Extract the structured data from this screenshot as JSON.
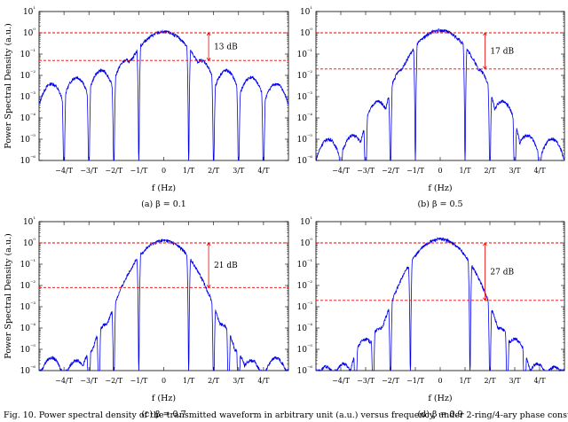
{
  "caption": "Fig. 10.  Power spectral density of the transmitted waveform in arbitrary unit (a.u.) versus frequency, under 2-ring/4-ary phase constellation.",
  "colors": {
    "spectrum": "#0000ee",
    "ref_line": "#ee0000"
  },
  "chart_data": [
    {
      "type": "line",
      "panel_caption": "(a) β = 0.1",
      "beta": 0.1,
      "xlabel": "f (Hz)",
      "ylabel": "Power Spectral Density (a.u.)",
      "x_ticks": [
        "−4/T",
        "−3/T",
        "−2/T",
        "−1/T",
        "0",
        "1/T",
        "2/T",
        "3/T",
        "4/T"
      ],
      "y_ticks": [
        "10⁻⁶",
        "10⁻⁵",
        "10⁻⁴",
        "10⁻³",
        "10⁻²",
        "10⁻¹",
        "10⁰",
        "10¹"
      ],
      "xlim": [
        -5,
        5
      ],
      "ylim": [
        1e-06,
        10
      ],
      "yscale": "log",
      "lobes": [
        {
          "f": -4.5,
          "peak": 0.004
        },
        {
          "f": -3.5,
          "peak": 0.008
        },
        {
          "f": -2.5,
          "peak": 0.017
        },
        {
          "f": -1.5,
          "peak": 0.05
        },
        {
          "f": 0,
          "peak": 1.1
        },
        {
          "f": 1.5,
          "peak": 0.05
        },
        {
          "f": 2.5,
          "peak": 0.017
        },
        {
          "f": 3.5,
          "peak": 0.008
        },
        {
          "f": 4.5,
          "peak": 0.004
        }
      ],
      "nulls": [
        -4,
        -3,
        -2,
        -1,
        1,
        2,
        3,
        4
      ],
      "ref_lines": [
        1.0,
        0.05
      ],
      "annotation": "13 dB"
    },
    {
      "type": "line",
      "panel_caption": "(b) β = 0.5",
      "beta": 0.5,
      "xlabel": "f (Hz)",
      "ylabel": "Power Spectral Density (a.u.)",
      "x_ticks": [
        "−4/T",
        "−3/T",
        "−2/T",
        "−1/T",
        "0",
        "1/T",
        "2/T",
        "3/T",
        "4/T"
      ],
      "y_ticks": [
        "10⁻⁶",
        "10⁻⁵",
        "10⁻⁴",
        "10⁻³",
        "10⁻²",
        "10⁻¹",
        "10⁰",
        "10¹"
      ],
      "xlim": [
        -5,
        5
      ],
      "ylim": [
        1e-06,
        10
      ],
      "yscale": "log",
      "lobes": [
        {
          "f": -4.5,
          "peak": 1e-05
        },
        {
          "f": -3.5,
          "peak": 1.5e-05
        },
        {
          "f": -2.5,
          "peak": 0.0006
        },
        {
          "f": -1.5,
          "peak": 0.02
        },
        {
          "f": 0,
          "peak": 1.3
        },
        {
          "f": 1.5,
          "peak": 0.02
        },
        {
          "f": 2.5,
          "peak": 0.0006
        },
        {
          "f": 3.5,
          "peak": 1.5e-05
        },
        {
          "f": 4.5,
          "peak": 1e-05
        }
      ],
      "nulls": [
        -4,
        -3,
        -2,
        -1,
        1,
        2,
        3,
        4
      ],
      "ref_lines": [
        1.0,
        0.02
      ],
      "annotation": "17 dB"
    },
    {
      "type": "line",
      "panel_caption": "(c) β = 0.7",
      "beta": 0.7,
      "xlabel": "f (Hz)",
      "ylabel": "Power Spectral Density (a.u.)",
      "x_ticks": [
        "−4/T",
        "−3/T",
        "−2/T",
        "−1/T",
        "0",
        "1/T",
        "2/T",
        "3/T",
        "4/T"
      ],
      "y_ticks": [
        "10⁻⁶",
        "10⁻⁵",
        "10⁻⁴",
        "10⁻³",
        "10⁻²",
        "10⁻¹",
        "10⁰",
        "10¹"
      ],
      "xlim": [
        -5,
        5
      ],
      "ylim": [
        1e-06,
        10
      ],
      "yscale": "log",
      "lobes": [
        {
          "f": -4.5,
          "peak": 4e-06
        },
        {
          "f": -3.5,
          "peak": 3e-06
        },
        {
          "f": -2.8,
          "peak": 1e-05
        },
        {
          "f": -2.3,
          "peak": 0.00015
        },
        {
          "f": -1.5,
          "peak": 0.008
        },
        {
          "f": 0,
          "peak": 1.3
        },
        {
          "f": 1.5,
          "peak": 0.008
        },
        {
          "f": 2.3,
          "peak": 0.00015
        },
        {
          "f": 2.8,
          "peak": 1e-05
        },
        {
          "f": 3.5,
          "peak": 3e-06
        },
        {
          "f": 4.5,
          "peak": 4e-06
        }
      ],
      "nulls": [
        -4,
        -3,
        -2.6,
        -2,
        -1,
        1,
        2,
        2.6,
        3,
        4
      ],
      "ref_lines": [
        1.0,
        0.008
      ],
      "annotation": "21 dB"
    },
    {
      "type": "line",
      "panel_caption": "(d) β = 0.9",
      "beta": 0.9,
      "xlabel": "f (Hz)",
      "ylabel": "Power Spectral Density (a.u.)",
      "x_ticks": [
        "−4/T",
        "−3/T",
        "−2/T",
        "−1/T",
        "0",
        "1/T",
        "2/T",
        "3/T",
        "4/T"
      ],
      "y_ticks": [
        "10⁻⁶",
        "10⁻⁵",
        "10⁻⁴",
        "10⁻³",
        "10⁻²",
        "10⁻¹",
        "10⁰",
        "10¹"
      ],
      "xlim": [
        -5,
        5
      ],
      "ylim": [
        1e-06,
        10
      ],
      "yscale": "log",
      "lobes": [
        {
          "f": -4.6,
          "peak": 1.5e-06
        },
        {
          "f": -3.9,
          "peak": 2e-06
        },
        {
          "f": -3.0,
          "peak": 3e-05
        },
        {
          "f": -2.4,
          "peak": 0.0001
        },
        {
          "f": -1.6,
          "peak": 0.0022
        },
        {
          "f": 0,
          "peak": 1.5
        },
        {
          "f": 1.6,
          "peak": 0.0022
        },
        {
          "f": 2.4,
          "peak": 0.0001
        },
        {
          "f": 3.0,
          "peak": 3e-05
        },
        {
          "f": 3.9,
          "peak": 2e-06
        },
        {
          "f": 4.6,
          "peak": 1.5e-06
        }
      ],
      "nulls": [
        -4.3,
        -3.4,
        -2.7,
        -2,
        -1.2,
        1.2,
        2,
        2.7,
        3.4,
        4.3
      ],
      "ref_lines": [
        1.0,
        0.002
      ],
      "annotation": "27 dB"
    }
  ]
}
